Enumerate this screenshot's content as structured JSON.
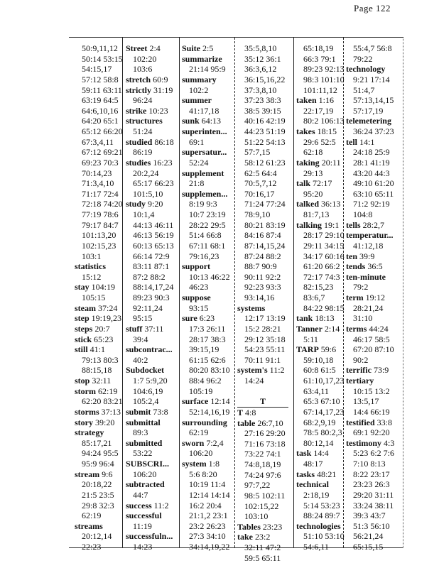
{
  "header": {
    "page_label": "Page 122"
  },
  "columns": [
    [
      "50:9,11,12",
      "50:14 53:15",
      "54:15,17",
      "57:12 58:8",
      "59:11 63:11",
      "63:19 64:5",
      "64:6,10,16",
      "64:20 65:1",
      "65:12 66:20",
      "67:3,4,11",
      "67:12 69:21",
      "69:23 70:3",
      "70:14,23",
      "71:3,4,10",
      "71:17 72:4",
      "72:18 74:20",
      "77:19 78:6",
      "79:17 84:7",
      "101:13,20",
      "102:15,23",
      "103:1",
      {
        "h": "statistics",
        "r": ""
      },
      "15:12",
      {
        "h": "stay",
        "r": "104:19"
      },
      "105:15",
      {
        "h": "steam",
        "r": "37:24"
      },
      {
        "h": "step",
        "r": "19:19,23"
      },
      {
        "h": "steps",
        "r": "20:7"
      },
      {
        "h": "stick",
        "r": "65:23"
      },
      {
        "h": "still",
        "r": "41:1"
      },
      "79:13 80:3",
      "88:15,18",
      {
        "h": "stop",
        "r": "32:11"
      },
      {
        "h": "storm",
        "r": "62:19"
      },
      "62:20 83:21",
      {
        "h": "storms",
        "r": "37:13"
      },
      {
        "h": "story",
        "r": "39:20"
      },
      {
        "h": "strategy",
        "r": ""
      },
      "85:17,21",
      "94:24 95:5",
      "95:9 96:4",
      {
        "h": "stream",
        "r": "9:6"
      },
      "20:18,22",
      "21:5 23:5",
      "29:8 32:3",
      "62:19",
      {
        "h": "streams",
        "r": ""
      },
      "20:12,14",
      "22:23"
    ],
    [
      {
        "h": "Street",
        "r": "2:4"
      },
      "102:20",
      "103:6",
      {
        "h": "stretch",
        "r": "60:9"
      },
      {
        "h": "strictly",
        "r": "31:19"
      },
      "96:24",
      {
        "h": "strike",
        "r": "10:23"
      },
      {
        "h": "structures",
        "r": ""
      },
      "51:24",
      {
        "h": "studied",
        "r": "86:18"
      },
      "86:19",
      {
        "h": "studies",
        "r": "16:23"
      },
      "20:2,24",
      "65:17 66:23",
      "101:5,10",
      {
        "h": "study",
        "r": "9:20"
      },
      "10:1,4",
      "44:13 46:11",
      "46:13 56:19",
      "60:13 65:13",
      "66:14 72:9",
      "83:11 87:1",
      "87:2 88:2",
      "88:14,17,24",
      "89:23 90:3",
      "92:11,24",
      "95:15",
      {
        "h": "stuff",
        "r": "37:11"
      },
      "39:4",
      {
        "h": "subcontrac...",
        "r": ""
      },
      "40:2",
      {
        "h": "Subdocket",
        "r": ""
      },
      "1:7 5:9,20",
      "104:6,19",
      "105:2,4",
      {
        "h": "submit",
        "r": "73:8"
      },
      {
        "h": "submittal",
        "r": ""
      },
      "89:3",
      {
        "h": "submitted",
        "r": ""
      },
      "53:22",
      {
        "h": "SUBSCRI...",
        "r": ""
      },
      "106:20",
      {
        "h": "subtracted",
        "r": ""
      },
      "44:7",
      {
        "h": "success",
        "r": "11:2"
      },
      {
        "h": "successful",
        "r": ""
      },
      "11:19",
      {
        "h": "successfuln...",
        "r": ""
      },
      "14:23"
    ],
    [
      {
        "h": "Suite",
        "r": "2:5"
      },
      {
        "h": "summarize",
        "r": ""
      },
      "21:14 95:9",
      {
        "h": "summary",
        "r": ""
      },
      "102:2",
      {
        "h": "summer",
        "r": ""
      },
      "41:17,18",
      {
        "h": "sunk",
        "r": "64:13"
      },
      {
        "h": "superinten...",
        "r": ""
      },
      "69:1",
      {
        "h": "supersatur...",
        "r": ""
      },
      "52:24",
      {
        "h": "supplement",
        "r": ""
      },
      "21:8",
      {
        "h": "supplemen...",
        "r": ""
      },
      "8:19 9:3",
      "10:7 23:19",
      "28:22 29:5",
      "51:4 66:8",
      "67:11 68:1",
      "79:16,23",
      {
        "h": "support",
        "r": ""
      },
      "10:13 46:22",
      "46:23",
      {
        "h": "suppose",
        "r": ""
      },
      "93:15",
      {
        "h": "sure",
        "r": "6:23"
      },
      "17:3 26:11",
      "28:17 38:3",
      "39:15,19",
      "61:15 62:6",
      "80:20 83:10",
      "88:4 96:2",
      "105:19",
      {
        "h": "surface",
        "r": "12:14"
      },
      "52:14,16,19",
      {
        "h": "surrounding",
        "r": ""
      },
      "62:19",
      {
        "h": "sworn",
        "r": "7:2,4"
      },
      "106:20",
      {
        "h": "system",
        "r": "1:8"
      },
      "5:6 8:20",
      "10:19 11:4",
      "12:14 14:14",
      "16:2 20:4",
      "21:1,2 23:1",
      "23:2 26:23",
      "27:3 34:10",
      "34:14,19,22"
    ],
    [
      "35:5,8,10",
      "35:12 36:1",
      "36:3,6,12",
      "36:15,16,22",
      "37:3,8,10",
      "37:23 38:3",
      "38:5 39:15",
      "40:16 42:19",
      "44:23 51:19",
      "51:22 54:13",
      "57:7,15",
      "58:12 61:23",
      "62:5 64:4",
      "70:5,7,12",
      "70:16,17",
      "71:24 77:24",
      "78:9,10",
      "80:21 83:19",
      "84:16 87:4",
      "87:14,15,24",
      "87:24 88:2",
      "88:7 90:9",
      "90:11 92:2",
      "92:23 93:3",
      "93:14,16",
      {
        "h": "systems",
        "r": ""
      },
      "12:17 13:19",
      "15:2 28:21",
      "29:12 35:18",
      "54:23 55:11",
      "70:11 91:1",
      {
        "h": "system's",
        "r": "11:2"
      },
      "14:24",
      "",
      {
        "c": "T"
      },
      {
        "h": "T",
        "r": "4:8"
      },
      {
        "h": "table",
        "r": "26:7,10"
      },
      "27:16 29:20",
      "71:16 73:18",
      "73:22 74:1",
      "74:8,18,19",
      "74:24 97:6",
      "97:7,22",
      "98:5 102:11",
      "102:15,22",
      "103:10",
      {
        "h": "Tables",
        "r": "23:23"
      },
      {
        "h": "take",
        "r": "23:2"
      },
      "32:11 47:2",
      "59:5 65:11"
    ],
    [
      "65:18,19",
      "66:3 79:1",
      "89:23 92:13",
      "98:3 101:10",
      "101:11,12",
      {
        "h": "taken",
        "r": "1:16"
      },
      "22:17,19",
      "80:2 106:13",
      {
        "h": "takes",
        "r": "18:15"
      },
      "29:6 52:5",
      "62:18",
      {
        "h": "taking",
        "r": "20:11"
      },
      "29:13",
      {
        "h": "talk",
        "r": "72:17"
      },
      "95:20",
      {
        "h": "talked",
        "r": "36:13"
      },
      "81:7,13",
      {
        "h": "talking",
        "r": "19:1"
      },
      "28:17 29:10",
      "29:11 34:15",
      "34:17 60:16",
      "61:20 66:2",
      "72:17 74:3",
      "82:15,23",
      "83:6,7",
      "84:22 98:15",
      {
        "h": "tank",
        "r": "18:13"
      },
      {
        "h": "Tanner",
        "r": "2:14"
      },
      "5:11",
      {
        "h": "TARP",
        "r": "59:6"
      },
      "59:10,18",
      "60:8 61:5",
      "61:10,17,23",
      "63:4,11",
      "65:3 67:10",
      "67:14,17,23",
      "68:2,9,19",
      "78:5 80:2,3",
      "80:12,14",
      {
        "h": "task",
        "r": "14:4"
      },
      "48:17",
      {
        "h": "tasks",
        "r": "48:21"
      },
      {
        "h": "technical",
        "r": ""
      },
      "2:18,19",
      "5:14 53:23",
      "88:24 89:7",
      {
        "h": "technologies",
        "r": ""
      },
      "51:10 53:10",
      "54:6,11"
    ],
    [
      "55:4,7 56:8",
      "79:22",
      {
        "h": "technology",
        "r": ""
      },
      "9:21 17:14",
      "51:4,7",
      "57:13,14,15",
      "57:17,19",
      {
        "h": "telemetering",
        "r": ""
      },
      "36:24 37:23",
      {
        "h": "tell",
        "r": "14:1"
      },
      "24:18 25:9",
      "28:1 41:19",
      "43:20 44:3",
      "49:10 61:20",
      "63:10 65:11",
      "71:2 92:19",
      "104:8",
      {
        "h": "tells",
        "r": "28:2,7"
      },
      {
        "h": "temperatur...",
        "r": ""
      },
      "41:12,18",
      {
        "h": "ten",
        "r": "39:9"
      },
      {
        "h": "tends",
        "r": "36:5"
      },
      {
        "h": "ten-minute",
        "r": ""
      },
      "79:2",
      {
        "h": "term",
        "r": "19:12"
      },
      "28:21,24",
      "31:10",
      {
        "h": "terms",
        "r": "44:24"
      },
      "46:17 58:5",
      "67:20 87:10",
      "90:2",
      {
        "h": "terrific",
        "r": "73:9"
      },
      {
        "h": "tertiary",
        "r": ""
      },
      "10:15 13:2",
      "13:5,17",
      "14:4 66:19",
      {
        "h": "testified",
        "r": "33:8"
      },
      "69:1 92:20",
      {
        "h": "testimony",
        "r": "4:3"
      },
      "5:23 6:2 7:6",
      "7:10 8:13",
      "8:22 23:17",
      "23:23 26:3",
      "29:20 31:11",
      "33:24 38:11",
      "39:3 43:7",
      "51:3 56:10",
      "56:21,24",
      "65:15,15"
    ]
  ]
}
